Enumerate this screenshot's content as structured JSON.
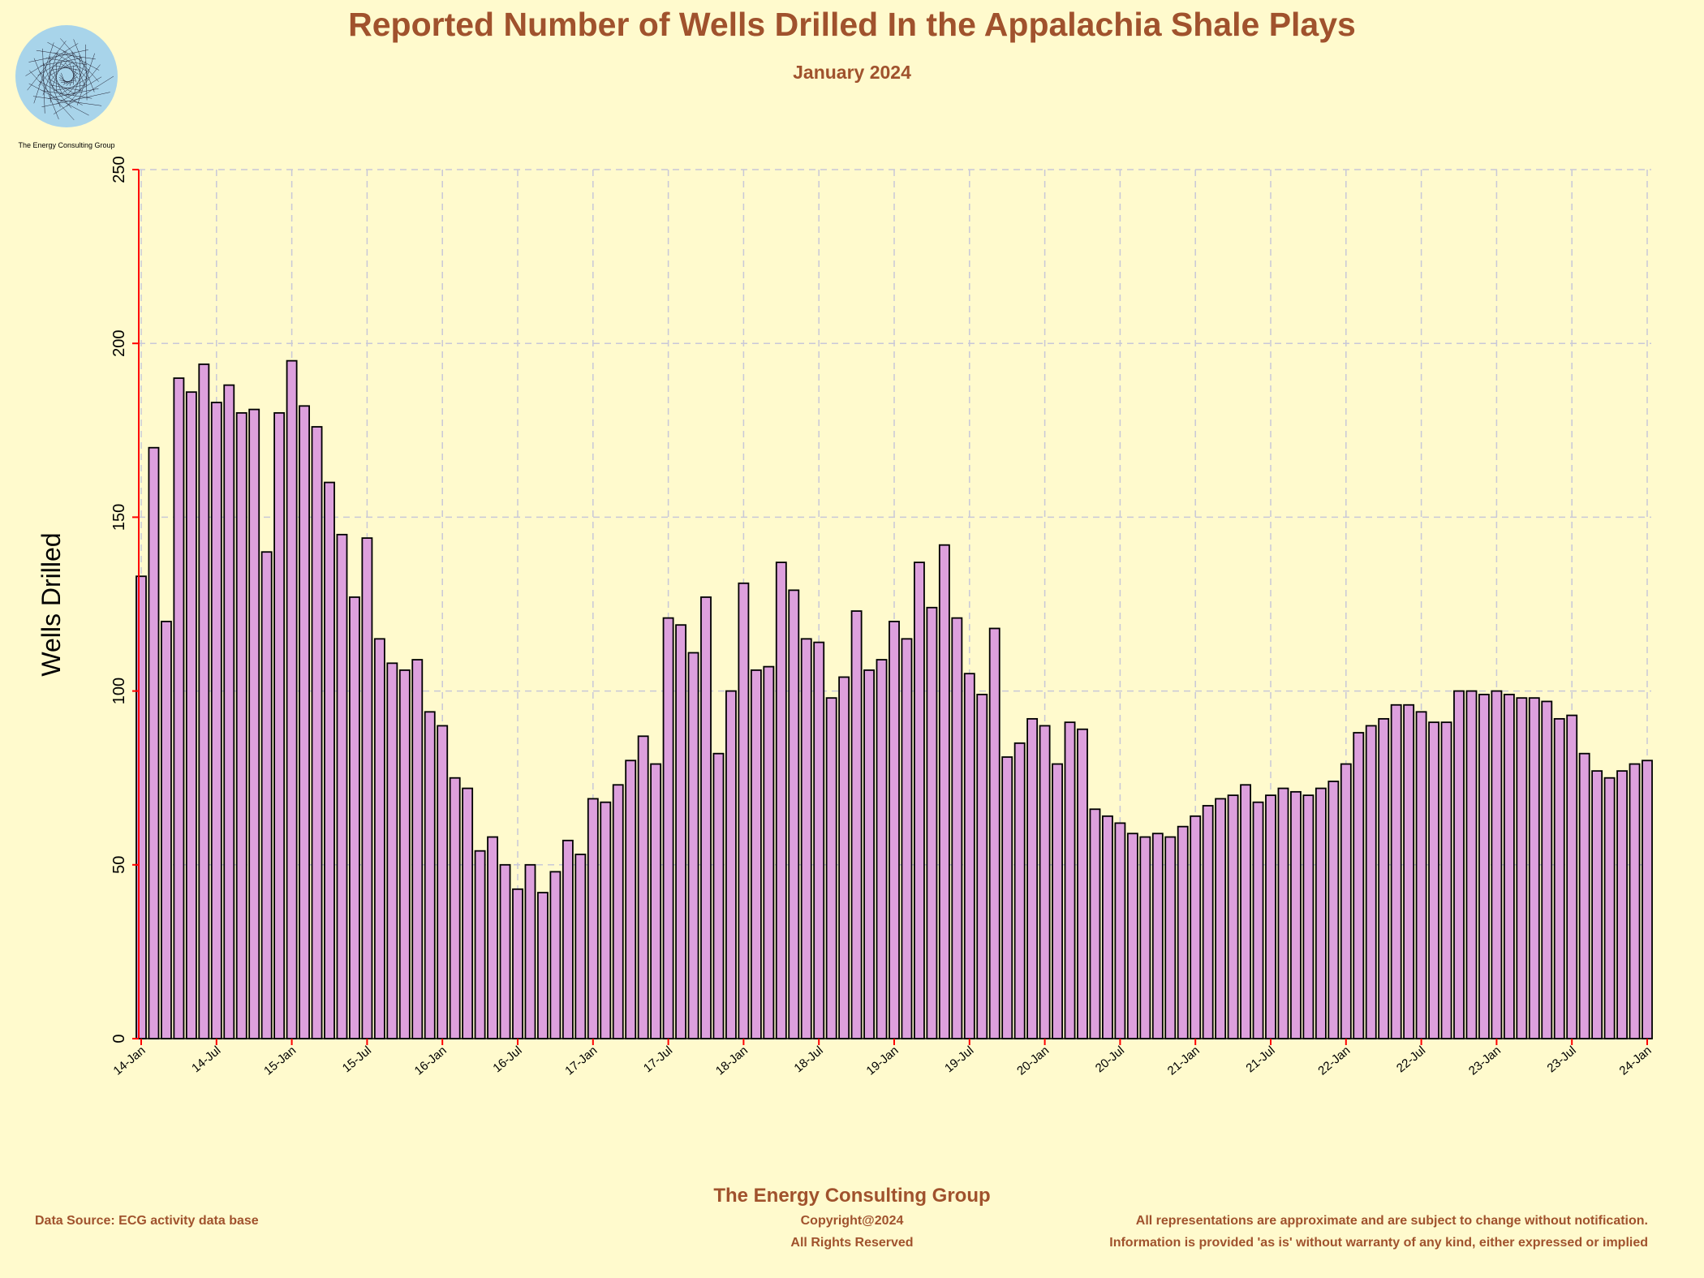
{
  "logo_text": "The Energy Consulting Group",
  "colors": {
    "background": "#fffacd",
    "bar_fill": "#dda0dd",
    "bar_stroke": "#000000",
    "title": "#a0522d",
    "y_axis": "#ff0000",
    "grid": "#c8c8d8"
  },
  "chart_data": {
    "type": "bar",
    "title": "Reported Number of Wells Drilled In the Appalachia Shale Plays",
    "subtitle": "January 2024",
    "xlabel": "",
    "ylabel": "Wells Drilled",
    "ylim": [
      0,
      250
    ],
    "yticks": [
      0,
      50,
      100,
      150,
      200,
      250
    ],
    "grid": true,
    "xtick_labels": [
      "14-Jan",
      "14-Jul",
      "15-Jan",
      "15-Jul",
      "16-Jan",
      "16-Jul",
      "17-Jan",
      "17-Jul",
      "18-Jan",
      "18-Jul",
      "19-Jan",
      "19-Jul",
      "20-Jan",
      "20-Jul",
      "21-Jan",
      "21-Jul",
      "22-Jan",
      "22-Jul",
      "23-Jan",
      "23-Jul",
      "24-Jan"
    ],
    "x_start": "2014-01",
    "x_end": "2024-01",
    "frequency": "monthly",
    "values": [
      133,
      170,
      120,
      190,
      186,
      194,
      183,
      188,
      180,
      181,
      140,
      180,
      195,
      182,
      176,
      160,
      145,
      127,
      144,
      115,
      108,
      106,
      109,
      94,
      90,
      75,
      72,
      54,
      58,
      50,
      43,
      50,
      42,
      48,
      57,
      53,
      69,
      68,
      73,
      80,
      87,
      79,
      121,
      119,
      111,
      127,
      82,
      100,
      131,
      106,
      107,
      137,
      129,
      115,
      114,
      98,
      104,
      123,
      106,
      109,
      120,
      115,
      137,
      124,
      142,
      121,
      105,
      99,
      118,
      81,
      85,
      92,
      90,
      79,
      91,
      89,
      66,
      64,
      62,
      59,
      58,
      59,
      58,
      61,
      64,
      67,
      69,
      70,
      73,
      68,
      70,
      72,
      71,
      70,
      72,
      74,
      79,
      88,
      90,
      92,
      96,
      96,
      94,
      91,
      91,
      100,
      100,
      99,
      100,
      99,
      98,
      98,
      97,
      92,
      93,
      82,
      77,
      75,
      77,
      79,
      80
    ]
  },
  "footer": {
    "company": "The Energy Consulting Group",
    "source": "Data Source: ECG activity data base",
    "copyright": "Copyright@2024",
    "rights": "All Rights Reserved",
    "disclaimer1": "All representations are approximate and are subject to change without notification.",
    "disclaimer2": "Information is provided 'as is' without warranty of any kind, either expressed or implied"
  }
}
